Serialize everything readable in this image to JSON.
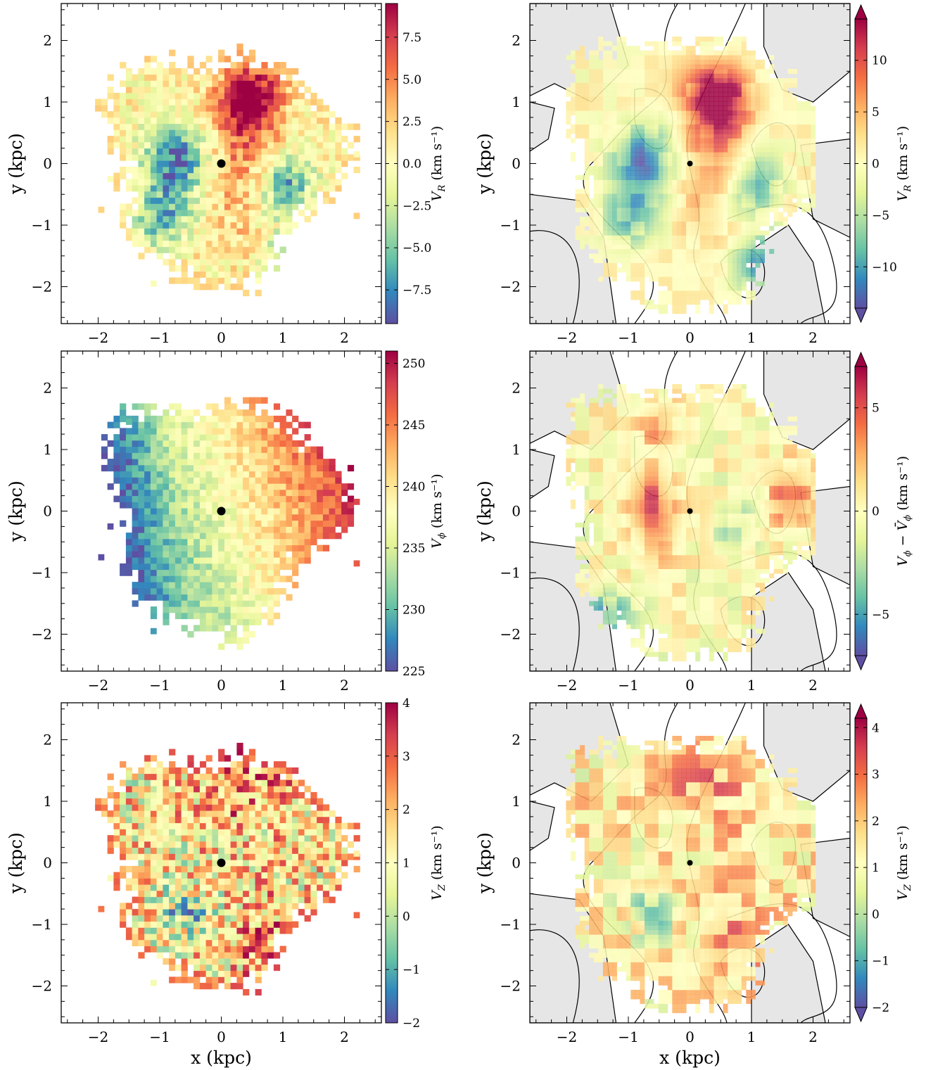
{
  "figure": {
    "description_free": true,
    "colormap_stops": [
      "#5e4fa2",
      "#3288bd",
      "#66c2a5",
      "#abdda4",
      "#e6f598",
      "#ffffbf",
      "#fee08b",
      "#fdae61",
      "#f46d43",
      "#d53e4f",
      "#9e0142"
    ]
  },
  "chart_data": [
    {
      "id": "vr-binned",
      "type": "heatmap",
      "xlabel": "",
      "ylabel": "y (kpc)",
      "xlim": [
        -2.6,
        2.6
      ],
      "ylim": [
        -2.6,
        2.6
      ],
      "xticks": [
        "−2",
        "−1",
        "0",
        "1",
        "2"
      ],
      "yticks": [
        "2",
        "1",
        "0",
        "−1",
        "−2"
      ],
      "colorbar": {
        "label": "V_R (km s⁻¹)",
        "label_main": "V",
        "label_sub": "R",
        "label_unit": " (km s⁻¹)",
        "vmin": -9.5,
        "vmax": 9.5,
        "ticks": [
          7.5,
          5.0,
          2.5,
          0.0,
          -2.5,
          -5.0,
          -7.5
        ],
        "tick_labels": [
          "7.5",
          "5.0",
          "2.5",
          "0.0",
          "−2.5",
          "−5.0",
          "−7.5"
        ]
      },
      "pattern": "vr",
      "marker": [
        0,
        0
      ]
    },
    {
      "id": "vr-smoothed",
      "type": "heatmap",
      "xlabel": "",
      "ylabel": "y (kpc)",
      "xlim": [
        -2.6,
        2.6
      ],
      "ylim": [
        -2.6,
        2.6
      ],
      "xticks": [
        "−2",
        "−1",
        "0",
        "1",
        "2"
      ],
      "yticks": [
        "2",
        "1",
        "0",
        "−1",
        "−2"
      ],
      "colorbar": {
        "label": "V_R (km s⁻¹)",
        "label_main": "V",
        "label_sub": "R",
        "label_unit": "  (km s⁻¹)",
        "vmin": -14,
        "vmax": 14,
        "ticks": [
          10,
          5,
          0,
          -5,
          -10
        ],
        "tick_labels": [
          "10",
          "5",
          "0",
          "−5",
          "−10"
        ],
        "extend": "both"
      },
      "pattern": "vr",
      "marker": [
        0,
        0
      ],
      "contours": true
    },
    {
      "id": "vphi-binned",
      "type": "heatmap",
      "xlabel": "",
      "ylabel": "y (kpc)",
      "xlim": [
        -2.6,
        2.6
      ],
      "ylim": [
        -2.6,
        2.6
      ],
      "xticks": [
        "−2",
        "−1",
        "0",
        "1",
        "2"
      ],
      "yticks": [
        "2",
        "1",
        "0",
        "−1",
        "−2"
      ],
      "colorbar": {
        "label": "V_ϕ (km s⁻¹)",
        "label_main": "V",
        "label_sub": "ϕ",
        "label_unit": " (km s⁻¹)",
        "vmin": 225,
        "vmax": 251,
        "ticks": [
          250,
          245,
          240,
          235,
          230,
          225
        ],
        "tick_labels": [
          "250",
          "245",
          "240",
          "235",
          "230",
          "225"
        ]
      },
      "pattern": "vphi",
      "marker": [
        0,
        0
      ]
    },
    {
      "id": "vphi-smoothed",
      "type": "heatmap",
      "xlabel": "",
      "ylabel": "y (kpc)",
      "xlim": [
        -2.6,
        2.6
      ],
      "ylim": [
        -2.6,
        2.6
      ],
      "xticks": [
        "−2",
        "−1",
        "0",
        "1",
        "2"
      ],
      "yticks": [
        "2",
        "1",
        "0",
        "−1",
        "−2"
      ],
      "colorbar": {
        "label": "V_ϕ − V̄_ϕ (km s⁻¹)",
        "label_main": "V",
        "label_sub": "ϕ",
        "label_mid": " − ",
        "label_main2": "V̄",
        "label_sub2": "ϕ",
        "label_unit": " (km s⁻¹)",
        "vmin": -7,
        "vmax": 7,
        "ticks": [
          5,
          0,
          -5
        ],
        "tick_labels": [
          "5",
          "0",
          "−5"
        ],
        "extend": "both"
      },
      "pattern": "vphid",
      "marker": [
        0,
        0
      ],
      "contours": true
    },
    {
      "id": "vz-binned",
      "type": "heatmap",
      "xlabel": "x (kpc)",
      "ylabel": "y (kpc)",
      "xlim": [
        -2.6,
        2.6
      ],
      "ylim": [
        -2.6,
        2.6
      ],
      "xticks": [
        "−2",
        "−1",
        "0",
        "1",
        "2"
      ],
      "yticks": [
        "2",
        "1",
        "0",
        "−1",
        "−2"
      ],
      "colorbar": {
        "label": "V_Z (km s⁻¹)",
        "label_main": "V",
        "label_sub": "Z",
        "label_unit": " (km s⁻¹)",
        "vmin": -2,
        "vmax": 4,
        "ticks": [
          4,
          3,
          2,
          1,
          0,
          -1,
          -2
        ],
        "tick_labels": [
          "4",
          "3",
          "2",
          "1",
          "0",
          "−1",
          "−2"
        ]
      },
      "pattern": "vz",
      "marker": [
        0,
        0
      ]
    },
    {
      "id": "vz-smoothed",
      "type": "heatmap",
      "xlabel": "x (kpc)",
      "ylabel": "y (kpc)",
      "xlim": [
        -2.6,
        2.6
      ],
      "ylim": [
        -2.6,
        2.6
      ],
      "xticks": [
        "−2",
        "−1",
        "0",
        "1",
        "2"
      ],
      "yticks": [
        "2",
        "1",
        "0",
        "−1",
        "−2"
      ],
      "colorbar": {
        "label": "V_Z (km s⁻¹)",
        "label_main": "V",
        "label_sub": "Z",
        "label_unit": "  (km s⁻¹)",
        "vmin": -2,
        "vmax": 4.2,
        "ticks": [
          4,
          3,
          2,
          1,
          0,
          -1,
          -2
        ],
        "tick_labels": [
          "4",
          "3",
          "2",
          "1",
          "0",
          "−1",
          "−2"
        ],
        "extend": "both"
      },
      "pattern": "vz",
      "marker": [
        0,
        0
      ],
      "contours": true
    }
  ]
}
